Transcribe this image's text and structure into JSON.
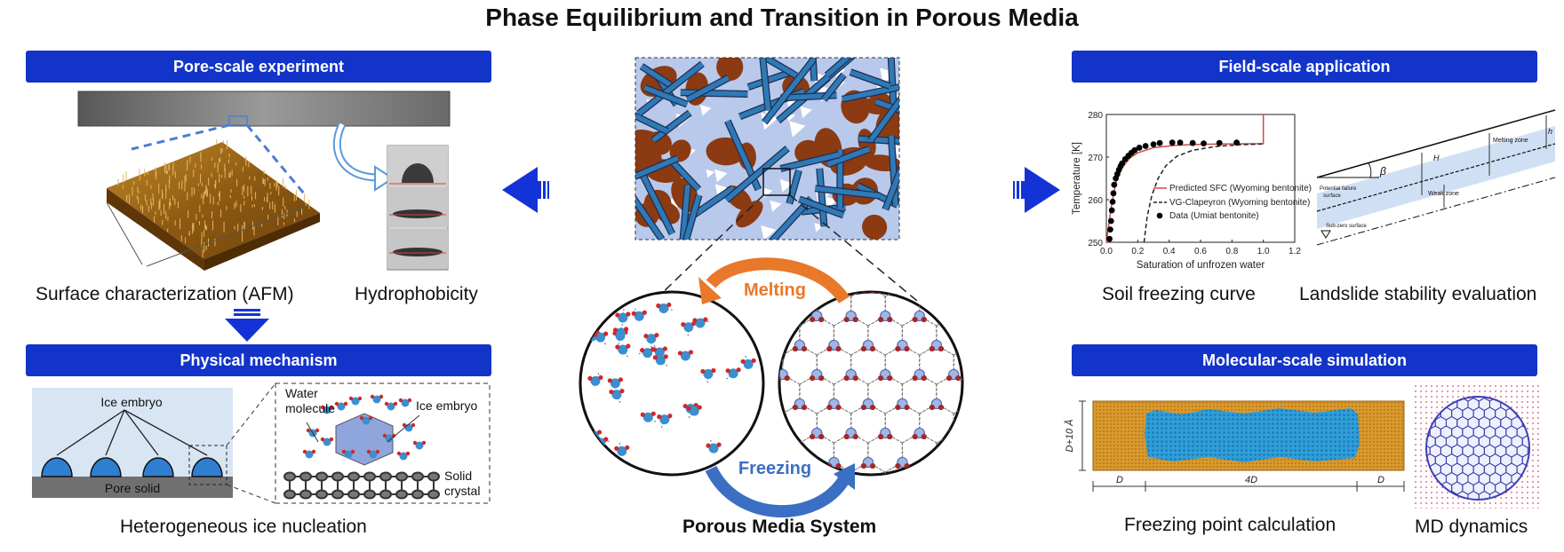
{
  "title": "Phase Equilibrium and Transition in Porous Media",
  "banners": {
    "pore_scale": "Pore-scale experiment",
    "physical": "Physical mechanism",
    "field_scale": "Field-scale application",
    "molecular": "Molecular-scale simulation"
  },
  "captions": {
    "afm": "Surface characterization (AFM)",
    "hydrophobicity": "Hydrophobicity",
    "nucleation": "Heterogeneous ice nucleation",
    "porous": "Porous Media System",
    "sfc": "Soil freezing curve",
    "landslide": "Landslide stability evaluation",
    "freezing_point": "Freezing point calculation",
    "md": "MD dynamics"
  },
  "cycle": {
    "melting": "Melting",
    "freezing": "Freezing"
  },
  "nucleation": {
    "ice_embryo": "Ice embryo",
    "pore_solid": "Pore solid",
    "water_molecule_1": "Water",
    "water_molecule_2": "molecule",
    "ice_embryo_2": "Ice embryo",
    "solid_crystal_1": "Solid",
    "solid_crystal_2": "crystal"
  },
  "landslide": {
    "beta": "β",
    "h": "h",
    "hw": "H",
    "melting_zone": "Melting zone",
    "weak_zone": "Weak zone",
    "failure_1": "Potential failure",
    "failure_2": "surface",
    "subzero": "Sub-zero surface"
  },
  "md": {
    "y_label": "D+10 Å",
    "x_left": "D",
    "x_mid": "4D",
    "x_right": "D"
  },
  "colors": {
    "banner": "#1334c9",
    "arrow": "#1433d6",
    "melting": "#e8782a",
    "freezing": "#3a6fc4",
    "rock": "#8b3a12",
    "fiber": "#2f79b7"
  },
  "chart_data": {
    "type": "scatter",
    "xlabel": "Saturation of unfrozen water",
    "ylabel": "Temperature [K]",
    "xlim": [
      0.0,
      1.2
    ],
    "ylim": [
      250,
      280
    ],
    "x_ticks": [
      "0.0",
      "0.2",
      "0.4",
      "0.6",
      "0.8",
      "1.0",
      "1.2"
    ],
    "y_ticks": [
      "250",
      "260",
      "270",
      "280"
    ],
    "legend_position": "right",
    "series": [
      {
        "name": "Predicted SFC (Wyoming bentonite)",
        "style": "solid",
        "color": "#d44a3f",
        "x": [
          0.0,
          0.03,
          0.06,
          0.1,
          0.15,
          0.2,
          0.3,
          0.45,
          0.6,
          0.8,
          1.0,
          1.0,
          1.0
        ],
        "y": [
          250,
          258,
          264,
          267.5,
          269.8,
          271,
          272.2,
          272.8,
          273.0,
          273.1,
          273.15,
          276,
          280
        ]
      },
      {
        "name": "VG-Clapeyron (Wyoming bentonite)",
        "style": "dashed",
        "color": "#222222",
        "x": [
          0.24,
          0.26,
          0.29,
          0.33,
          0.38,
          0.45,
          0.55,
          0.7,
          0.85,
          1.0
        ],
        "y": [
          250,
          256,
          261,
          265,
          268,
          270.2,
          271.6,
          272.5,
          272.9,
          273.1
        ]
      },
      {
        "name": "Data (Umiat bentonite)",
        "style": "marker",
        "color": "#000000",
        "x": [
          0.02,
          0.025,
          0.03,
          0.035,
          0.04,
          0.045,
          0.05,
          0.06,
          0.07,
          0.08,
          0.09,
          0.1,
          0.12,
          0.14,
          0.16,
          0.18,
          0.21,
          0.25,
          0.3,
          0.34,
          0.42,
          0.47,
          0.55,
          0.62,
          0.72,
          0.83
        ],
        "y": [
          250.8,
          253,
          255,
          257.5,
          259.5,
          261.5,
          263.5,
          265,
          266,
          267,
          267.8,
          268.5,
          269.5,
          270.3,
          271,
          271.6,
          272.2,
          272.6,
          273,
          273.3,
          273.4,
          273.4,
          273.3,
          273.2,
          273.3,
          273.4
        ]
      }
    ]
  }
}
